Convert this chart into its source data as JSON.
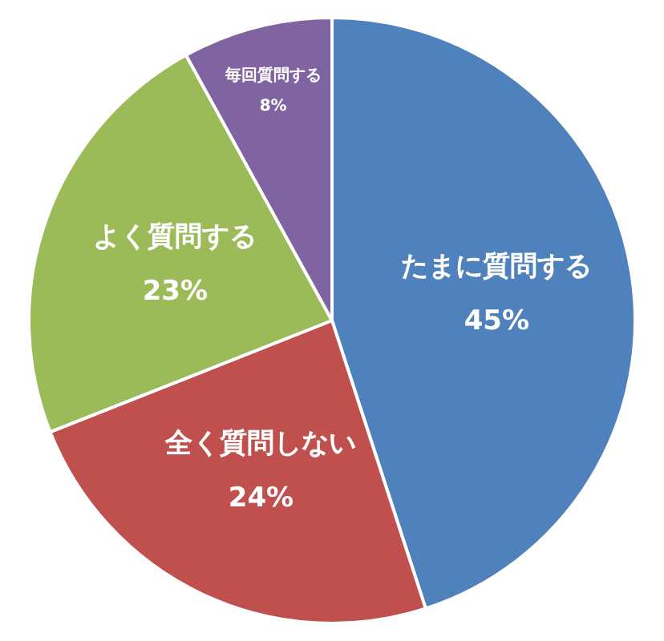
{
  "chart_data": {
    "type": "pie",
    "categories": [
      "たまに質問する",
      "全く質問しない",
      "よく質問する",
      "毎回質問する"
    ],
    "values": [
      45,
      24,
      23,
      8
    ],
    "value_labels": [
      "45%",
      "24%",
      "23%",
      "8%"
    ],
    "colors": [
      "#4f81bd",
      "#c0504d",
      "#9bbb59",
      "#8064a2"
    ]
  }
}
